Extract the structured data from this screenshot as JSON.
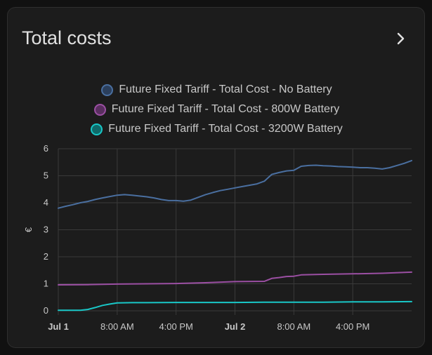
{
  "card": {
    "title": "Total costs"
  },
  "icons": {
    "more": "chevron-right-icon"
  },
  "chart_data": {
    "type": "line",
    "ylabel": "€",
    "ylim": [
      0,
      6
    ],
    "xlim": [
      0,
      48
    ],
    "yticks": [
      "0",
      "1",
      "2",
      "3",
      "4",
      "5",
      "6"
    ],
    "xticks": [
      {
        "label": "Jul 1",
        "x": 0,
        "bold": true
      },
      {
        "label": "8:00 AM",
        "x": 8,
        "bold": false
      },
      {
        "label": "4:00 PM",
        "x": 16,
        "bold": false
      },
      {
        "label": "Jul 2",
        "x": 24,
        "bold": true
      },
      {
        "label": "8:00 AM",
        "x": 32,
        "bold": false
      },
      {
        "label": "4:00 PM",
        "x": 40,
        "bold": false
      }
    ],
    "grid": true,
    "legend": "top-center",
    "series": [
      {
        "name": "Future Fixed Tariff - Total Cost - No Battery",
        "color": "#4a6fa0",
        "x": [
          0,
          1,
          2,
          3,
          4,
          5,
          6,
          7,
          8,
          9,
          10,
          11,
          12,
          13,
          14,
          15,
          16,
          17,
          18,
          19,
          20,
          21,
          22,
          23,
          24,
          25,
          26,
          27,
          28,
          29,
          30,
          31,
          32,
          33,
          34,
          35,
          36,
          37,
          38,
          39,
          40,
          41,
          42,
          43,
          44,
          45,
          46,
          47,
          48
        ],
        "values": [
          3.8,
          3.87,
          3.93,
          4.0,
          4.05,
          4.12,
          4.18,
          4.23,
          4.28,
          4.3,
          4.28,
          4.25,
          4.22,
          4.18,
          4.12,
          4.08,
          4.08,
          4.06,
          4.1,
          4.2,
          4.3,
          4.38,
          4.45,
          4.5,
          4.55,
          4.6,
          4.65,
          4.7,
          4.8,
          5.05,
          5.12,
          5.18,
          5.2,
          5.35,
          5.38,
          5.39,
          5.37,
          5.36,
          5.34,
          5.33,
          5.32,
          5.3,
          5.3,
          5.28,
          5.25,
          5.3,
          5.38,
          5.46,
          5.56
        ]
      },
      {
        "name": "Future Fixed Tariff - Total Cost - 800W Battery",
        "color": "#9b4fa3",
        "x": [
          0,
          4,
          8,
          12,
          16,
          20,
          24,
          28,
          29,
          30,
          31,
          32,
          33,
          36,
          40,
          44,
          48
        ],
        "values": [
          0.96,
          0.97,
          0.99,
          1.0,
          1.01,
          1.04,
          1.08,
          1.09,
          1.2,
          1.23,
          1.27,
          1.28,
          1.33,
          1.35,
          1.37,
          1.39,
          1.43
        ]
      },
      {
        "name": "Future Fixed Tariff - Total Cost - 3200W Battery",
        "color": "#19c7c7",
        "x": [
          0,
          1,
          2,
          3,
          4,
          5,
          6,
          7,
          8,
          10,
          12,
          16,
          20,
          24,
          28,
          32,
          36,
          40,
          44,
          48
        ],
        "values": [
          0.02,
          0.02,
          0.02,
          0.02,
          0.05,
          0.12,
          0.2,
          0.25,
          0.29,
          0.3,
          0.3,
          0.31,
          0.31,
          0.31,
          0.32,
          0.32,
          0.32,
          0.33,
          0.33,
          0.34
        ]
      }
    ]
  }
}
